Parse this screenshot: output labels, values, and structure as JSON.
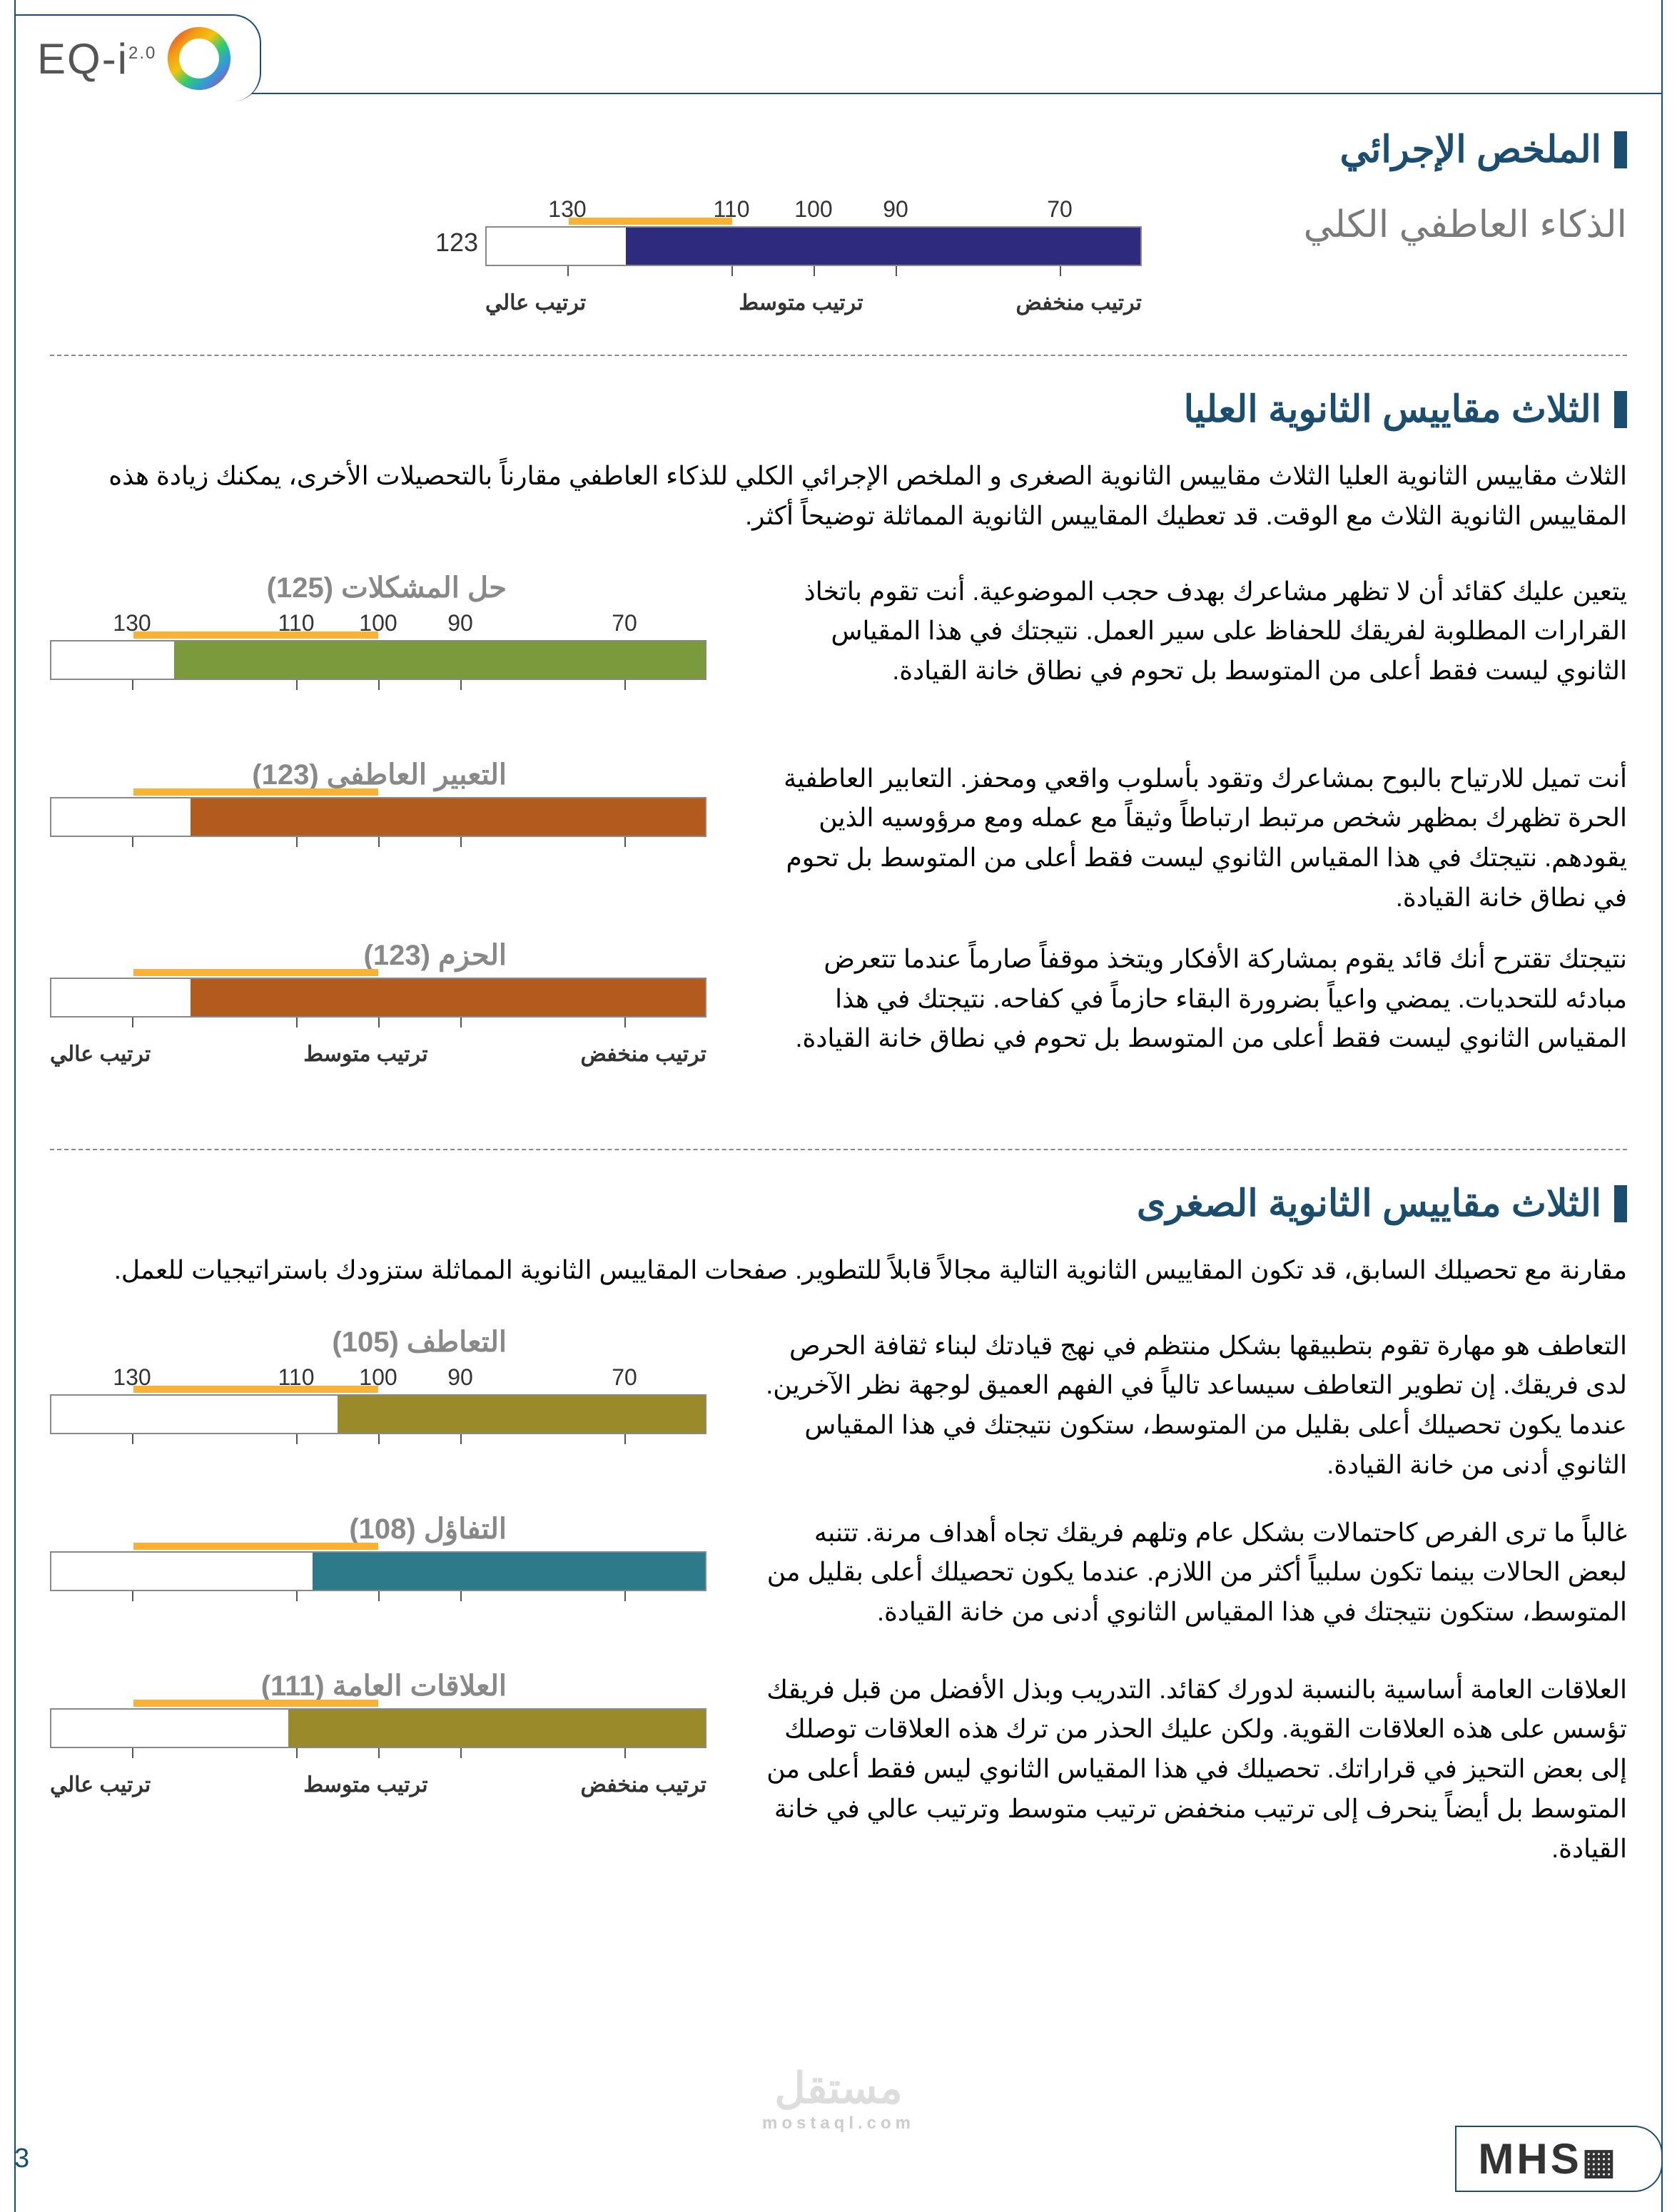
{
  "header": {
    "brand": "EQ-i",
    "version": "2.0"
  },
  "summary": {
    "title": "الملخص الإجرائي",
    "total_label": "الذكاء العاطفي الكلي",
    "chart": {
      "value": 123,
      "min": 60,
      "max": 140,
      "ticks": [
        70,
        90,
        100,
        110,
        130
      ],
      "range_low": "ترتيب منخفض",
      "range_mid": "ترتيب متوسط",
      "range_high": "ترتيب عالي",
      "bar_color": "#2e2a7d",
      "marker_start": 110,
      "marker_end": 130
    }
  },
  "top3": {
    "title": "الثلاث مقاييس الثانوية العليا",
    "intro": "الثلاث مقاييس الثانوية العليا الثلاث مقاييس الثانوية الصغرى و الملخص الإجرائي الكلي للذكاء العاطفي مقارناً بالتحصيلات الأخرى، يمكنك زيادة هذه المقاييس الثانوية الثلاث مع الوقت. قد تعطيك المقاييس الثانوية المماثلة توضيحاً أكثر.",
    "items": [
      {
        "label": "حل المشكلات",
        "score": 125,
        "text": "يتعين عليك كقائد أن لا تظهر مشاعرك بهدف حجب الموضوعية. أنت تقوم باتخاذ القرارات المطلوبة لفريقك للحفاظ على سير العمل. نتيجتك في هذا المقياس الثانوي ليست فقط أعلى من المتوسط بل تحوم في نطاق خانة القيادة.",
        "bar_color": "#7a9a3b"
      },
      {
        "label": "التعبير العاطفي",
        "score": 123,
        "text": "أنت تميل للارتياح بالبوح بمشاعرك وتقود بأسلوب واقعي ومحفز. التعابير العاطفية الحرة تظهرك بمظهر شخص مرتبط ارتباطاً وثيقاً مع عمله ومع مرؤوسيه الذين يقودهم. نتيجتك في هذا المقياس الثانوي ليست فقط أعلى من المتوسط بل تحوم في نطاق خانة القيادة.",
        "bar_color": "#b35a1f"
      },
      {
        "label": "الحزم",
        "score": 123,
        "text": "نتيجتك تقترح أنك قائد يقوم بمشاركة الأفكار ويتخذ موقفاً صارماً عندما تتعرض مبادئه للتحديات. يمضي واعياً بضرورة البقاء حازماً في كفاحه. نتيجتك في هذا المقياس الثانوي ليست فقط أعلى من المتوسط بل تحوم في نطاق خانة القيادة.",
        "bar_color": "#b35a1f"
      }
    ]
  },
  "bottom3": {
    "title": "الثلاث مقاييس الثانوية الصغرى",
    "intro": "مقارنة مع تحصيلك السابق، قد تكون المقاييس الثانوية التالية مجالاً قابلاً للتطوير. صفحات المقاييس الثانوية المماثلة ستزودك باستراتيجيات للعمل.",
    "items": [
      {
        "label": "التعاطف",
        "score": 105,
        "text": "التعاطف هو مهارة تقوم بتطبيقها بشكل منتظم في نهج قيادتك لبناء ثقافة الحرص لدى فريقك. إن تطوير التعاطف سيساعد تالياً في الفهم العميق لوجهة نظر الآخرين. عندما يكون تحصيلك أعلى بقليل من المتوسط، ستكون نتيجتك في هذا المقياس الثانوي أدنى من خانة القيادة.",
        "bar_color": "#9a8a2a"
      },
      {
        "label": "التفاؤل",
        "score": 108,
        "text": "غالباً ما ترى الفرص كاحتمالات بشكل عام وتلهم فريقك تجاه أهداف مرنة. تتنبه لبعض الحالات بينما تكون سلبياً أكثر من اللازم. عندما يكون تحصيلك أعلى بقليل من المتوسط، ستكون نتيجتك في هذا المقياس الثانوي أدنى من خانة القيادة.",
        "bar_color": "#2d7a8a"
      },
      {
        "label": "العلاقات العامة",
        "score": 111,
        "text": "العلاقات العامة أساسية بالنسبة لدورك كقائد. التدريب وبذل الأفضل من قبل فريقك تؤسس على هذه العلاقات القوية. ولكن عليك الحذر من ترك هذه العلاقات توصلك إلى بعض التحيز في قراراتك. تحصيلك في هذا المقياس الثانوي ليس فقط أعلى من المتوسط بل أيضاً ينحرف إلى ترتيب منخفض ترتيب متوسط وترتيب عالي في خانة القيادة.",
        "bar_color": "#9a8a2a"
      }
    ]
  },
  "scale": {
    "min": 60,
    "max": 140,
    "ticks": [
      70,
      90,
      100,
      110,
      130
    ],
    "range_low": "ترتيب منخفض",
    "range_mid": "ترتيب متوسط",
    "range_high": "ترتيب عالي",
    "marker_start": 100,
    "marker_end": 130
  },
  "footer": {
    "brand": "MHS",
    "page": "3",
    "watermark": "مستقل",
    "watermark_sub": "mostaql.com"
  }
}
